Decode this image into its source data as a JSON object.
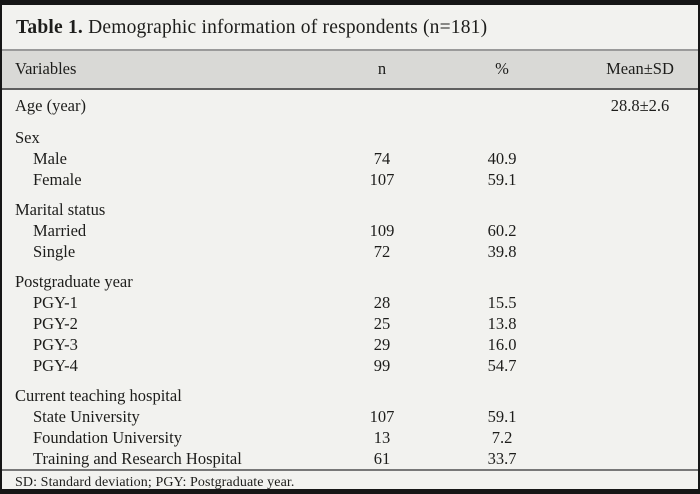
{
  "title": {
    "label": "Table 1.",
    "caption": "Demographic information of respondents (n=181)"
  },
  "table": {
    "columns": [
      "Variables",
      "n",
      "%",
      "Mean±SD"
    ],
    "rows": [
      {
        "label": "Age (year)",
        "n": "",
        "pct": "",
        "mean": "28.8±2.6",
        "indent": 0,
        "group": false,
        "first": true
      },
      {
        "label": "Sex",
        "n": "",
        "pct": "",
        "mean": "",
        "indent": 0,
        "group": true
      },
      {
        "label": "Male",
        "n": "74",
        "pct": "40.9",
        "mean": "",
        "indent": 1,
        "group": false
      },
      {
        "label": "Female",
        "n": "107",
        "pct": "59.1",
        "mean": "",
        "indent": 1,
        "group": false
      },
      {
        "label": "Marital status",
        "n": "",
        "pct": "",
        "mean": "",
        "indent": 0,
        "group": true
      },
      {
        "label": "Married",
        "n": "109",
        "pct": "60.2",
        "mean": "",
        "indent": 1,
        "group": false
      },
      {
        "label": "Single",
        "n": "72",
        "pct": "39.8",
        "mean": "",
        "indent": 1,
        "group": false
      },
      {
        "label": "Postgraduate year",
        "n": "",
        "pct": "",
        "mean": "",
        "indent": 0,
        "group": true
      },
      {
        "label": "PGY-1",
        "n": "28",
        "pct": "15.5",
        "mean": "",
        "indent": 1,
        "group": false
      },
      {
        "label": "PGY-2",
        "n": "25",
        "pct": "13.8",
        "mean": "",
        "indent": 1,
        "group": false
      },
      {
        "label": "PGY-3",
        "n": "29",
        "pct": "16.0",
        "mean": "",
        "indent": 1,
        "group": false
      },
      {
        "label": "PGY-4",
        "n": "99",
        "pct": "54.7",
        "mean": "",
        "indent": 1,
        "group": false
      },
      {
        "label": "Current teaching hospital",
        "n": "",
        "pct": "",
        "mean": "",
        "indent": 0,
        "group": true
      },
      {
        "label": "State University",
        "n": "107",
        "pct": "59.1",
        "mean": "",
        "indent": 1,
        "group": false
      },
      {
        "label": "Foundation University",
        "n": "13",
        "pct": "7.2",
        "mean": "",
        "indent": 1,
        "group": false
      },
      {
        "label": "Training and Research Hospital",
        "n": "61",
        "pct": "33.7",
        "mean": "",
        "indent": 1,
        "group": false
      }
    ]
  },
  "footnote": "SD: Standard deviation; PGY: Postgraduate year.",
  "colors": {
    "background": "#f2f2ef",
    "header_bg": "#d9d9d6",
    "frame_border": "#161616",
    "text": "#1d1d1b"
  }
}
